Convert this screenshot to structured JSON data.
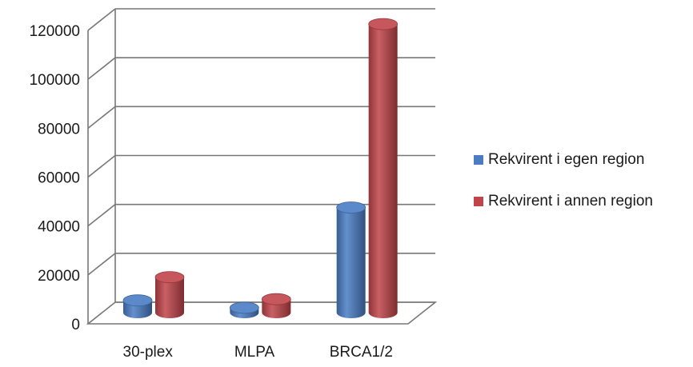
{
  "chart_data": {
    "type": "bar",
    "title": "",
    "xlabel": "",
    "ylabel": "",
    "categories": [
      "30-plex",
      "MLPA",
      "BRCA1/2"
    ],
    "series": [
      {
        "name": "Rekvirent i egen region",
        "values": [
          5000,
          2000,
          43000
        ],
        "color": "#4a7cc4"
      },
      {
        "name": "Rekvirent i annen region",
        "values": [
          14500,
          5500,
          118000
        ],
        "color": "#c0444a"
      }
    ],
    "ylim": [
      0,
      120000
    ],
    "yticks": [
      0,
      20000,
      40000,
      60000,
      80000,
      100000,
      120000
    ],
    "ytick_labels": [
      "0",
      "20000",
      "40000",
      "60000",
      "80000",
      "100000",
      "120000"
    ],
    "grid": true,
    "legend_position": "right",
    "style": "3d-cylinder"
  }
}
